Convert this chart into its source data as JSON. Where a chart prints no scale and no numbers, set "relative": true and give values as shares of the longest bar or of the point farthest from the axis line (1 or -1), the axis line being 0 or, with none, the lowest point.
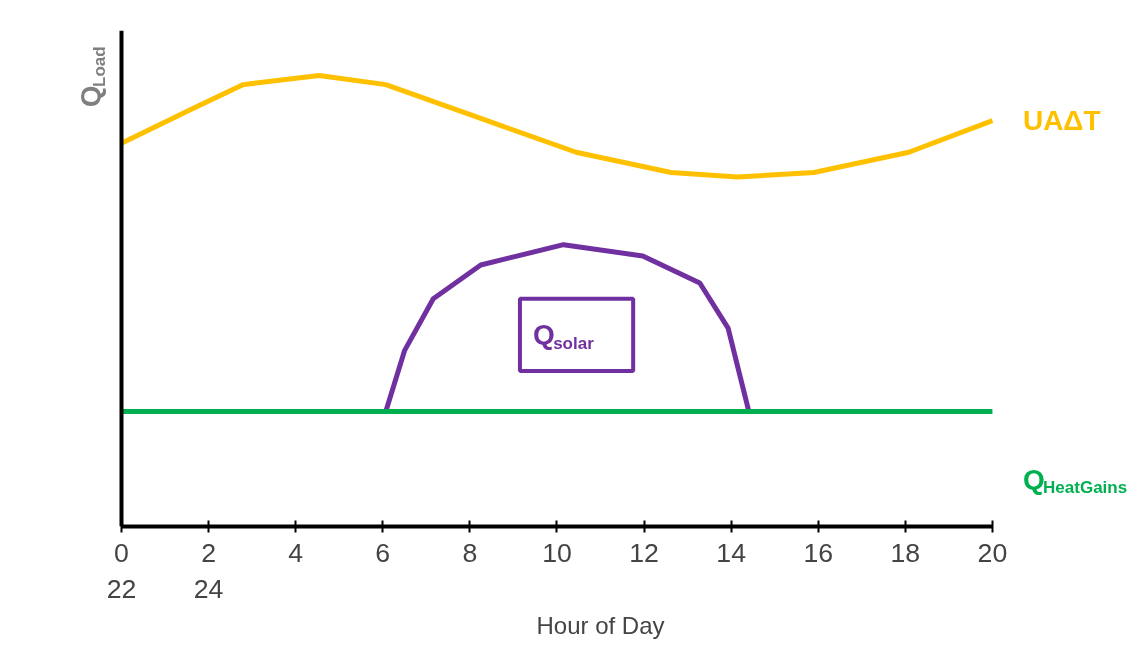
{
  "chart_data": {
    "type": "line",
    "relative": true,
    "ylabel": "Q$_{Load}$",
    "xlabel": "Hour of Day",
    "xlim": [
      0,
      20
    ],
    "xticks": [
      {
        "value": 0,
        "label": "0\n22"
      },
      {
        "value": 2,
        "label": "2\n24"
      },
      4,
      6,
      8,
      10,
      12,
      14,
      16,
      18,
      20
    ],
    "grid": false,
    "marker": "none",
    "line_style": "solid",
    "series": [
      {
        "name": "UAΔT",
        "color": "#ffc000",
        "x": [
          0,
          1.7,
          2.8,
          4.54,
          6.07,
          8.25,
          10.44,
          12.62,
          14.15,
          15.9,
          18.08,
          20
        ],
        "values": [
          0.85,
          0.93,
          0.98,
          1.0,
          0.98,
          0.905,
          0.83,
          0.785,
          0.775,
          0.785,
          0.83,
          0.9
        ]
      },
      {
        "name": "Q$_{solar}$",
        "color": "#7030a0",
        "x": [
          6.07,
          6.5,
          7.16,
          8.25,
          10.15,
          11.97,
          13.28,
          13.93,
          14.4
        ],
        "values": [
          0.255,
          0.39,
          0.505,
          0.58,
          0.625,
          0.6,
          0.54,
          0.44,
          0.2575
        ]
      },
      {
        "name": "Q$_{HeatGains}$",
        "color": "#00b050",
        "x": [
          0,
          20
        ],
        "values": [
          0.255,
          0.255
        ]
      }
    ]
  }
}
